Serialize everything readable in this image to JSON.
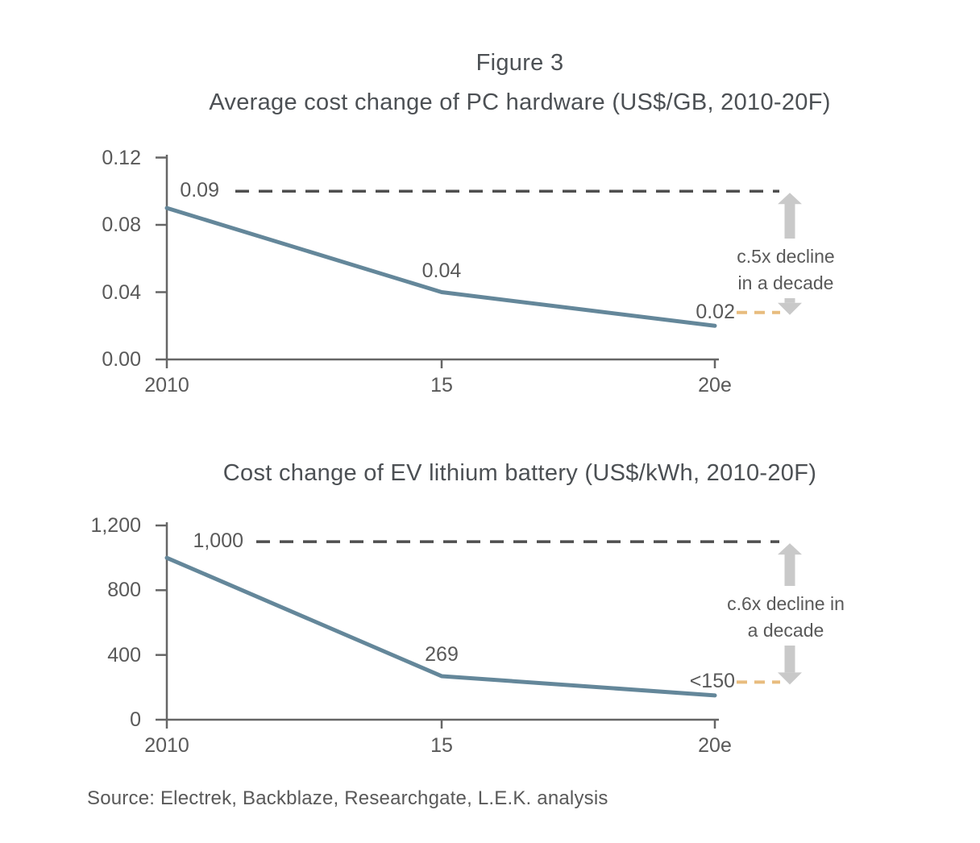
{
  "figure_label": "Figure 3",
  "source": "Source: Electrek, Backblaze, Researchgate, L.E.K. analysis",
  "colors": {
    "line": "#64879a",
    "axis": "#666666",
    "ref_dash": "#4f4f4f",
    "accent_dash": "#e8bc7e",
    "arrow": "#c9c9c9",
    "label_text": "#595959",
    "title_text": "#4c5054"
  },
  "chart_data": [
    {
      "type": "line",
      "title": "Average cost change of PC hardware (US$/GB, 2010-20F)",
      "categories": [
        "2010",
        "15",
        "20e"
      ],
      "values": [
        0.09,
        0.04,
        0.02
      ],
      "point_labels": [
        "0.09",
        "0.04",
        "0.02"
      ],
      "y_ticks": [
        "0.12",
        "0.08",
        "0.04",
        "0.00"
      ],
      "y_tick_values": [
        0.12,
        0.08,
        0.04,
        0
      ],
      "ylim": [
        0,
        0.12
      ],
      "reference_line_value": 0.1,
      "annotation": [
        "c.5x decline",
        "in a decade"
      ],
      "grid": false,
      "legend": false
    },
    {
      "type": "line",
      "title": "Cost change of EV lithium battery (US$/kWh, 2010-20F)",
      "categories": [
        "2010",
        "15",
        "20e"
      ],
      "values": [
        1000,
        269,
        150
      ],
      "point_labels": [
        "1,000",
        "269",
        "<150"
      ],
      "y_ticks": [
        "1,200",
        "800",
        "400",
        "0"
      ],
      "y_tick_values": [
        1200,
        800,
        400,
        0
      ],
      "ylim": [
        0,
        1200
      ],
      "reference_line_value": 1100,
      "annotation": [
        "c.6x decline in",
        "a decade"
      ],
      "grid": false,
      "legend": false
    }
  ]
}
